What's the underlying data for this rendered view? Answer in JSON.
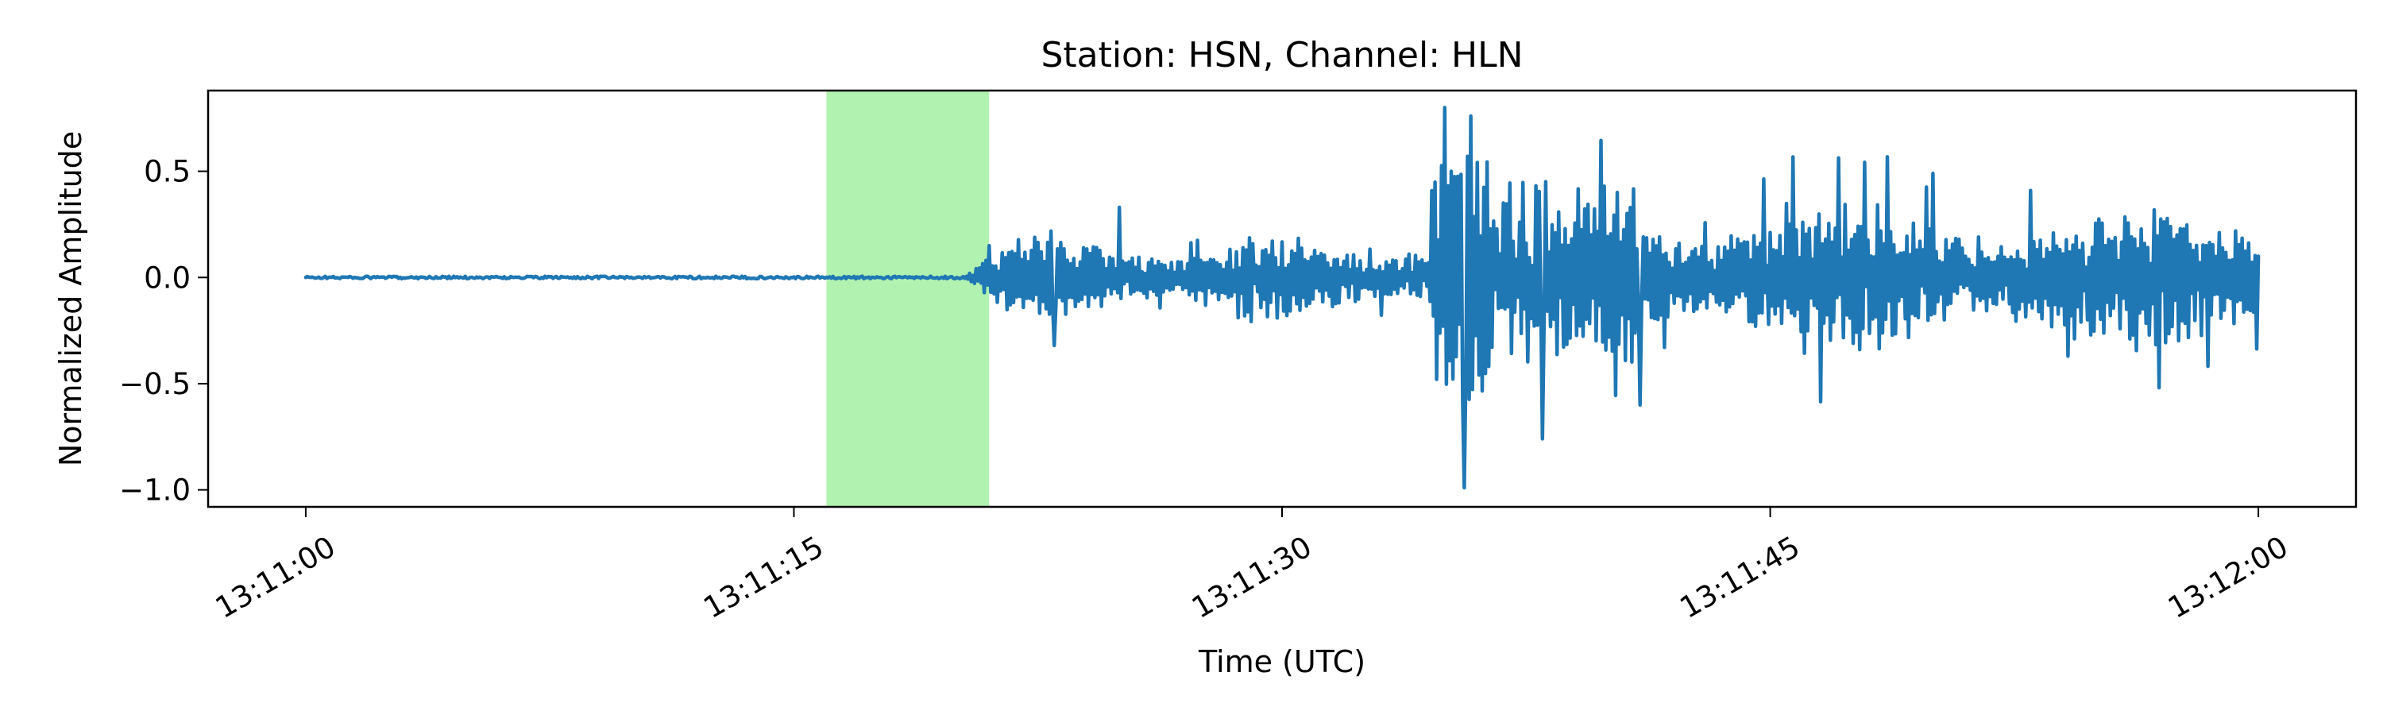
{
  "chart_data": {
    "type": "line",
    "title": "Station: HSN, Channel: HLN",
    "xlabel": "Time (UTC)",
    "ylabel": "Normalized Amplitude",
    "x_range_seconds": [
      "13:11:00",
      "13:12:00"
    ],
    "xlim": [
      "13:10:57",
      "13:12:03"
    ],
    "ylim": [
      -1.08,
      0.88
    ],
    "x_ticks": [
      "13:11:00",
      "13:11:15",
      "13:11:30",
      "13:11:45",
      "13:12:00"
    ],
    "y_ticks": [
      {
        "value": 0.5,
        "label": "0.5"
      },
      {
        "value": 0.0,
        "label": "0.0"
      },
      {
        "value": -0.5,
        "label": "−0.5"
      },
      {
        "value": -1.0,
        "label": "−1.0"
      }
    ],
    "highlight_window": {
      "start": "13:11:16",
      "end": "13:11:21",
      "color": "#b2f2b0"
    },
    "series": [
      {
        "color": "#1f77b4",
        "description": "seismic trace: near-zero noise until ~13:11:20.5, moderate amplitude ~±0.2 until ~13:11:34.5, strong shaking up to +0.8 / -1.0 near 13:11:35.5, then decaying ~±0.4 through 13:12:00",
        "keypoints": [
          {
            "t": "13:11:00",
            "y": 0.0
          },
          {
            "t": "13:11:20",
            "y": 0.0
          },
          {
            "t": "13:11:21",
            "y": 0.15
          },
          {
            "t": "13:11:23",
            "y": -0.32
          },
          {
            "t": "13:11:25",
            "y": 0.33
          },
          {
            "t": "13:11:34.5",
            "y": 0.07
          },
          {
            "t": "13:11:35",
            "y": 0.8
          },
          {
            "t": "13:11:35.6",
            "y": -0.99
          },
          {
            "t": "13:11:35.8",
            "y": 0.76
          },
          {
            "t": "13:11:38",
            "y": -0.76
          },
          {
            "t": "13:11:41",
            "y": -0.6
          },
          {
            "t": "13:11:50",
            "y": 0.49
          },
          {
            "t": "13:11:53",
            "y": 0.41
          },
          {
            "t": "13:12:00",
            "y": 0.1
          }
        ]
      }
    ]
  }
}
